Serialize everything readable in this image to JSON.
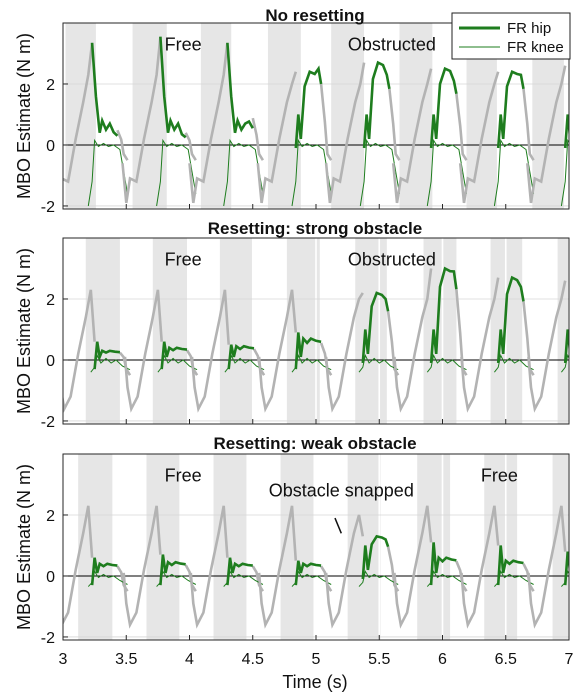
{
  "chart_data": {
    "type": "line",
    "xlabel": "Time (s)",
    "xlim": [
      3,
      7
    ],
    "xticks": [
      3,
      3.5,
      4,
      4.5,
      5,
      5.5,
      6,
      6.5,
      7
    ],
    "xtick_labels": [
      "3",
      "3.5",
      "4",
      "4.5",
      "5",
      "5.5",
      "6",
      "6.5",
      "7"
    ],
    "legend": {
      "placement": "top-right of first panel",
      "entries": [
        {
          "name": "FR hip",
          "color": "#1e7d1e",
          "style": "thick line"
        },
        {
          "name": "FR knee",
          "color": "#1e7d1e",
          "style": "thin line"
        }
      ]
    },
    "colors": {
      "hip_active": "#1e7d1e",
      "hip_swing": "#b3b3b3",
      "knee": "#1e7d1e",
      "shade": "#e6e6e6"
    },
    "panels": [
      {
        "title": "No resetting",
        "ylabel": "MBO Estimate (N m)",
        "ylim": [
          -2.1,
          4
        ],
        "yticks": [
          -2,
          0,
          2
        ],
        "annotations": [
          {
            "text": "Free",
            "x": 3.95,
            "y": 3.3
          },
          {
            "text": "Obstructed",
            "x": 5.6,
            "y": 3.3
          }
        ],
        "shaded": [
          [
            3.02,
            3.26
          ],
          [
            3.55,
            3.82
          ],
          [
            4.09,
            4.33
          ],
          [
            4.62,
            4.88
          ],
          [
            5.12,
            5.38
          ],
          [
            5.66,
            5.92
          ],
          [
            6.19,
            6.43
          ],
          [
            6.71,
            6.96
          ]
        ],
        "cycles": [
          {
            "s": 2.98,
            "peak": 3.35,
            "high": 0.6,
            "obs": false
          },
          {
            "s": 3.52,
            "peak": 3.55,
            "high": 0.5,
            "obs": false
          },
          {
            "s": 4.05,
            "peak": 3.35,
            "high": 1.1,
            "obs": false
          },
          {
            "s": 4.59,
            "peak": 2.4,
            "high": 2.5,
            "obs": true
          },
          {
            "s": 5.13,
            "peak": 2.7,
            "high": 2.3,
            "obs": true
          },
          {
            "s": 5.66,
            "peak": 2.5,
            "high": 2.1,
            "obs": true
          },
          {
            "s": 6.19,
            "peak": 2.4,
            "high": 2.3,
            "obs": true
          },
          {
            "s": 6.72,
            "peak": 2.6,
            "high": 2.1,
            "obs": true
          }
        ],
        "knee": {
          "low": -2.0,
          "plateau": -0.05
        }
      },
      {
        "title": "Resetting: strong obstacle",
        "ylabel": "MBO Estimate (N m)",
        "ylim": [
          -2.1,
          4
        ],
        "yticks": [
          -2,
          0,
          2
        ],
        "annotations": [
          {
            "text": "Free",
            "x": 3.95,
            "y": 3.3
          },
          {
            "text": "Obstructed",
            "x": 5.6,
            "y": 3.3
          }
        ],
        "shaded": [
          [
            3.18,
            3.45
          ],
          [
            3.71,
            3.98
          ],
          [
            4.24,
            4.5
          ],
          [
            4.77,
            5.03
          ],
          [
            5.31,
            5.56
          ],
          [
            5.85,
            6.11
          ],
          [
            6.38,
            6.63
          ],
          [
            6.91,
            7.0
          ]
        ],
        "cycles": [
          {
            "s": 3.0,
            "peak": 0.6,
            "high": 0.3,
            "obs": false
          },
          {
            "s": 3.53,
            "peak": 0.6,
            "high": 0.4,
            "obs": false
          },
          {
            "s": 4.06,
            "peak": 0.5,
            "high": 0.45,
            "obs": false
          },
          {
            "s": 4.59,
            "peak": 0.9,
            "high": 0.7,
            "obs": false
          },
          {
            "s": 5.12,
            "peak": 2.2,
            "high": 2.0,
            "obs": true
          },
          {
            "s": 5.66,
            "peak": 3.0,
            "high": 2.9,
            "obs": true
          },
          {
            "s": 6.19,
            "peak": 2.7,
            "high": 2.4,
            "obs": true
          },
          {
            "s": 6.72,
            "peak": 2.6,
            "high": 2.2,
            "obs": true
          }
        ],
        "knee": {
          "low": -0.4,
          "plateau": -0.1
        }
      },
      {
        "title": "Resetting: weak obstacle",
        "ylabel": "MBO Estimate (N m)",
        "ylim": [
          -2.1,
          4
        ],
        "yticks": [
          -2,
          0,
          2
        ],
        "annotations": [
          {
            "text": "Free",
            "x": 3.95,
            "y": 3.3
          },
          {
            "text": "Obstacle snapped",
            "x": 5.2,
            "y": 2.8
          },
          {
            "text": "Free",
            "x": 6.45,
            "y": 3.3
          }
        ],
        "arrow": {
          "from": [
            5.15,
            1.9
          ],
          "to": [
            5.2,
            1.4
          ]
        },
        "shaded": [
          [
            3.12,
            3.39
          ],
          [
            3.66,
            3.92
          ],
          [
            4.19,
            4.45
          ],
          [
            4.72,
            4.98
          ],
          [
            5.25,
            5.51
          ],
          [
            5.8,
            6.06
          ],
          [
            6.33,
            6.59
          ],
          [
            6.87,
            7.0
          ]
        ],
        "cycles": [
          {
            "s": 2.98,
            "peak": 0.6,
            "high": 0.4,
            "obs": false
          },
          {
            "s": 3.52,
            "peak": 0.7,
            "high": 0.45,
            "obs": false
          },
          {
            "s": 4.05,
            "peak": 0.6,
            "high": 0.4,
            "obs": false
          },
          {
            "s": 4.59,
            "peak": 0.5,
            "high": 0.4,
            "obs": false
          },
          {
            "s": 5.12,
            "peak": 1.3,
            "high": 1.2,
            "obs": true
          },
          {
            "s": 5.66,
            "peak": 1.1,
            "high": 0.6,
            "obs": false
          },
          {
            "s": 6.19,
            "peak": 1.0,
            "high": 0.5,
            "obs": false
          },
          {
            "s": 6.72,
            "peak": 0.8,
            "high": 0.45,
            "obs": false
          }
        ],
        "knee": {
          "low": -0.35,
          "plateau": -0.05
        }
      }
    ]
  }
}
